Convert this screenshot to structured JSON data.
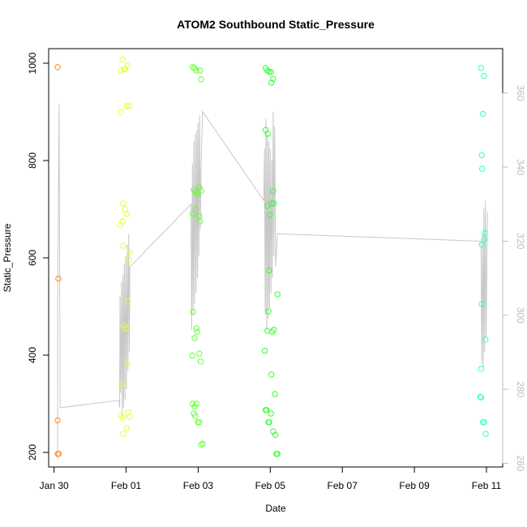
{
  "chart_data": {
    "type": "scatter",
    "title": "ATOM2 Southbound Static_Pressure",
    "xlabel": "Date",
    "ylabel": "Static_Pressure",
    "x_ticks": [
      "Jan 30",
      "Feb 01",
      "Feb 03",
      "Feb 05",
      "Feb 07",
      "Feb 09",
      "Feb 11"
    ],
    "y_ticks": [
      "200",
      "400",
      "600",
      "800",
      "1000"
    ],
    "y2_ticks": [
      "260",
      "280",
      "300",
      "320",
      "340",
      "360"
    ],
    "xlim": [
      -0.15,
      12.45
    ],
    "ylim": [
      170,
      1030
    ],
    "y2lim": [
      259,
      372
    ],
    "grid": false,
    "colors": {
      "day0": "#ff8c1a",
      "day2": "#e6ff33",
      "day4": "#66ff33",
      "day6": "#33ff33",
      "day11": "#33ffcc",
      "line": "#c8c8c8",
      "right_axis": "#bdbdbd"
    },
    "series": [
      {
        "color_key": "day0",
        "points": [
          [
            0.1,
            992
          ],
          [
            0.12,
            557
          ],
          [
            0.1,
            266
          ],
          [
            0.1,
            197
          ],
          [
            0.13,
            197
          ]
        ]
      },
      {
        "color_key": "day2",
        "points": [
          [
            1.85,
            985
          ],
          [
            1.9,
            1008
          ],
          [
            1.97,
            988
          ],
          [
            2.03,
            995
          ],
          [
            1.95,
            987
          ],
          [
            2.02,
            912
          ],
          [
            2.08,
            912
          ],
          [
            1.85,
            900
          ],
          [
            1.92,
            712
          ],
          [
            1.97,
            700
          ],
          [
            2.02,
            690
          ],
          [
            1.9,
            675
          ],
          [
            1.83,
            668
          ],
          [
            1.92,
            625
          ],
          [
            2.1,
            612
          ],
          [
            2.08,
            596
          ],
          [
            2.05,
            510
          ],
          [
            1.93,
            461
          ],
          [
            1.99,
            455
          ],
          [
            2.03,
            383
          ],
          [
            1.88,
            341
          ],
          [
            2.05,
            282
          ],
          [
            2.1,
            273
          ],
          [
            1.85,
            276
          ],
          [
            1.9,
            271
          ],
          [
            2.02,
            250
          ],
          [
            1.92,
            238
          ]
        ]
      },
      {
        "color_key": "day4",
        "points": [
          [
            3.85,
            992
          ],
          [
            3.9,
            990
          ],
          [
            3.95,
            985
          ],
          [
            4.05,
            985
          ],
          [
            4.08,
            967
          ],
          [
            3.88,
            740
          ],
          [
            3.92,
            735
          ],
          [
            3.98,
            730
          ],
          [
            4.03,
            745
          ],
          [
            4.08,
            738
          ],
          [
            3.93,
            700
          ],
          [
            4.03,
            686
          ],
          [
            3.85,
            690
          ],
          [
            4.05,
            675
          ],
          [
            3.86,
            489
          ],
          [
            3.95,
            455
          ],
          [
            3.97,
            448
          ],
          [
            3.9,
            435
          ],
          [
            4.03,
            403
          ],
          [
            4.07,
            387
          ],
          [
            3.84,
            399
          ],
          [
            3.85,
            300
          ],
          [
            3.95,
            300
          ],
          [
            3.9,
            294
          ],
          [
            3.88,
            280
          ],
          [
            3.92,
            275
          ],
          [
            3.99,
            262
          ],
          [
            4.03,
            262
          ],
          [
            4.08,
            216
          ],
          [
            4.13,
            218
          ]
        ]
      },
      {
        "color_key": "day6",
        "points": [
          [
            5.87,
            990
          ],
          [
            5.92,
            985
          ],
          [
            5.97,
            982
          ],
          [
            6.02,
            982
          ],
          [
            6.08,
            968
          ],
          [
            6.03,
            960
          ],
          [
            5.87,
            863
          ],
          [
            5.93,
            855
          ],
          [
            6.08,
            737
          ],
          [
            5.92,
            707
          ],
          [
            6.04,
            712
          ],
          [
            6.1,
            712
          ],
          [
            5.99,
            688
          ],
          [
            5.97,
            574
          ],
          [
            6.2,
            525
          ],
          [
            5.95,
            490
          ],
          [
            5.92,
            450
          ],
          [
            6.05,
            448
          ],
          [
            6.1,
            452
          ],
          [
            5.85,
            409
          ],
          [
            6.03,
            360
          ],
          [
            6.13,
            320
          ],
          [
            5.9,
            287
          ],
          [
            5.87,
            287
          ],
          [
            6.02,
            280
          ],
          [
            5.97,
            262
          ],
          [
            5.95,
            262
          ],
          [
            6.08,
            243
          ],
          [
            6.14,
            236
          ],
          [
            6.17,
            197
          ],
          [
            6.2,
            197
          ]
        ]
      },
      {
        "color_key": "day11",
        "points": [
          [
            11.85,
            990
          ],
          [
            11.93,
            974
          ],
          [
            11.9,
            896
          ],
          [
            11.87,
            811
          ],
          [
            11.88,
            783
          ],
          [
            11.95,
            651
          ],
          [
            11.94,
            638
          ],
          [
            11.87,
            627
          ],
          [
            11.87,
            505
          ],
          [
            11.97,
            432
          ],
          [
            11.85,
            372
          ],
          [
            11.83,
            314
          ],
          [
            11.85,
            313
          ],
          [
            11.9,
            262
          ],
          [
            11.94,
            262
          ],
          [
            11.98,
            238
          ]
        ]
      }
    ],
    "line_series": {
      "axis": "right",
      "points": [
        [
          0.1,
          261
        ],
        [
          0.1,
          303
        ],
        [
          0.14,
          357
        ],
        [
          0.17,
          275
        ],
        [
          1.8,
          277
        ],
        [
          1.82,
          275
        ],
        [
          1.83,
          305
        ],
        [
          1.85,
          279
        ],
        [
          1.87,
          309
        ],
        [
          1.89,
          273
        ],
        [
          1.91,
          311
        ],
        [
          1.93,
          275
        ],
        [
          1.95,
          314
        ],
        [
          1.97,
          277
        ],
        [
          1.99,
          316
        ],
        [
          2.01,
          280
        ],
        [
          2.03,
          319
        ],
        [
          2.05,
          285
        ],
        [
          2.07,
          322
        ],
        [
          2.09,
          290
        ],
        [
          2.1,
          313
        ],
        [
          3.8,
          330
        ],
        [
          3.82,
          296
        ],
        [
          3.84,
          341
        ],
        [
          3.86,
          300
        ],
        [
          3.88,
          347
        ],
        [
          3.9,
          303
        ],
        [
          3.92,
          349
        ],
        [
          3.94,
          306
        ],
        [
          3.96,
          350
        ],
        [
          3.98,
          310
        ],
        [
          4.0,
          352
        ],
        [
          4.02,
          316
        ],
        [
          4.04,
          354
        ],
        [
          4.06,
          323
        ],
        [
          4.08,
          340
        ],
        [
          4.12,
          355
        ],
        [
          5.82,
          331
        ],
        [
          5.84,
          345
        ],
        [
          5.86,
          300
        ],
        [
          5.88,
          353
        ],
        [
          5.9,
          296
        ],
        [
          5.92,
          349
        ],
        [
          5.94,
          299
        ],
        [
          5.96,
          347
        ],
        [
          5.98,
          302
        ],
        [
          6.0,
          345
        ],
        [
          6.02,
          306
        ],
        [
          6.04,
          342
        ],
        [
          6.06,
          310
        ],
        [
          6.08,
          355
        ],
        [
          6.1,
          316
        ],
        [
          6.12,
          351
        ],
        [
          6.15,
          313
        ],
        [
          6.2,
          322
        ],
        [
          11.85,
          320
        ],
        [
          11.87,
          287
        ],
        [
          11.89,
          322
        ],
        [
          11.91,
          286
        ],
        [
          11.93,
          329
        ],
        [
          11.95,
          290
        ],
        [
          11.97,
          331
        ],
        [
          11.99,
          294
        ],
        [
          12.03,
          328
        ]
      ]
    }
  }
}
